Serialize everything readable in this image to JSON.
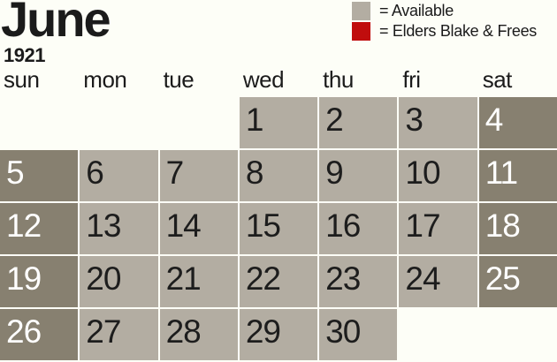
{
  "title": {
    "month": "June",
    "year": "1921"
  },
  "legend": {
    "items": [
      {
        "key": "available",
        "label": "= Available",
        "color": "#b3ada2"
      },
      {
        "key": "elders-blake-frees",
        "label": "= Elders Blake & Frees",
        "color": "#c00d0d"
      }
    ]
  },
  "colors": {
    "background": "#fdfef7",
    "available": "#b3ada2",
    "weekend": "#878070",
    "day_text": "#1d1d1d",
    "weekend_day_text": "#ffffff",
    "heading_text": "#1b1b1b"
  },
  "weekday_headers": [
    "sun",
    "mon",
    "tue",
    "wed",
    "thu",
    "fri",
    "sat"
  ],
  "weeks": [
    [
      null,
      null,
      null,
      {
        "day": "1",
        "state": "available"
      },
      {
        "day": "2",
        "state": "available"
      },
      {
        "day": "3",
        "state": "available"
      },
      {
        "day": "4",
        "state": "weekend"
      }
    ],
    [
      {
        "day": "5",
        "state": "weekend"
      },
      {
        "day": "6",
        "state": "available"
      },
      {
        "day": "7",
        "state": "available"
      },
      {
        "day": "8",
        "state": "available"
      },
      {
        "day": "9",
        "state": "available"
      },
      {
        "day": "10",
        "state": "available"
      },
      {
        "day": "11",
        "state": "weekend"
      }
    ],
    [
      {
        "day": "12",
        "state": "weekend"
      },
      {
        "day": "13",
        "state": "available"
      },
      {
        "day": "14",
        "state": "available"
      },
      {
        "day": "15",
        "state": "available"
      },
      {
        "day": "16",
        "state": "available"
      },
      {
        "day": "17",
        "state": "available"
      },
      {
        "day": "18",
        "state": "weekend"
      }
    ],
    [
      {
        "day": "19",
        "state": "weekend"
      },
      {
        "day": "20",
        "state": "available"
      },
      {
        "day": "21",
        "state": "available"
      },
      {
        "day": "22",
        "state": "available"
      },
      {
        "day": "23",
        "state": "available"
      },
      {
        "day": "24",
        "state": "available"
      },
      {
        "day": "25",
        "state": "weekend"
      }
    ],
    [
      {
        "day": "26",
        "state": "weekend"
      },
      {
        "day": "27",
        "state": "available"
      },
      {
        "day": "28",
        "state": "available"
      },
      {
        "day": "29",
        "state": "available"
      },
      {
        "day": "30",
        "state": "available"
      },
      null,
      null
    ]
  ]
}
